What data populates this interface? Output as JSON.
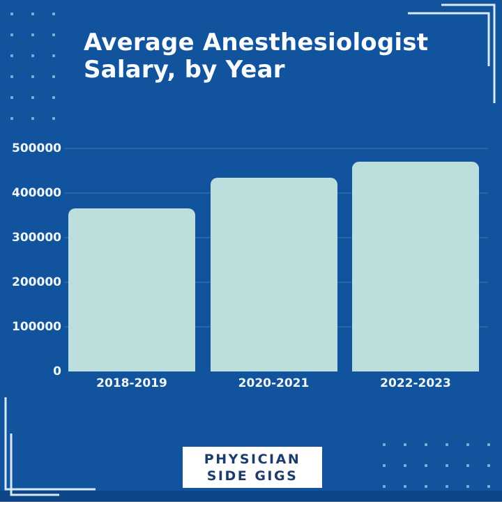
{
  "page": {
    "background_color": "#11549D",
    "bar_color": "#BCDFDD",
    "bracket_color": "#D9E9F9",
    "dot_color": "#A8CAEC",
    "logo_text_color": "#1B3C6D"
  },
  "title": {
    "line1": "Average Anesthesiologist",
    "line2": "Salary, by Year"
  },
  "chart_data": {
    "type": "bar",
    "title": "Average Anesthesiologist Salary, by Year",
    "categories": [
      "2018-2019",
      "2020-2021",
      "2022-2023"
    ],
    "values": [
      365000,
      435000,
      470000
    ],
    "xlabel": "",
    "ylabel": "",
    "ylim": [
      0,
      500000
    ],
    "yticks": [
      0,
      100000,
      200000,
      300000,
      400000,
      500000
    ],
    "grid": true,
    "legend_position": "none",
    "bar_color": "#BCDFDD"
  },
  "footer": {
    "logo_line1": "PHYSICIAN",
    "logo_line2": "SIDE GIGS"
  }
}
